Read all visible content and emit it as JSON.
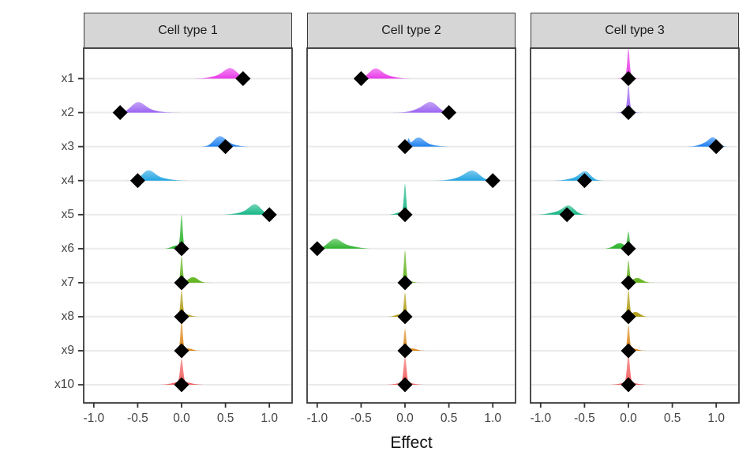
{
  "chart_data": {
    "type": "area",
    "description": "Faceted ridgeline/density plot of posterior effect distributions with black diamond point estimates, one panel per cell type",
    "facets": [
      "Cell type 1",
      "Cell type 2",
      "Cell type 3"
    ],
    "variables": [
      "x1",
      "x2",
      "x3",
      "x4",
      "x5",
      "x6",
      "x7",
      "x8",
      "x9",
      "x10"
    ],
    "xlabel": "Effect",
    "x_ticks": {
      "values": [
        -1.0,
        -0.5,
        0.0,
        0.5,
        1.0
      ],
      "labels": [
        "-1.0",
        "-0.5",
        "0.0",
        "0.5",
        "1.0"
      ]
    },
    "xlim": [
      -1.12,
      1.26
    ],
    "grid": "horizontal-only",
    "legend": "none",
    "point_shape": "diamond",
    "point_color": "#000000",
    "series_colors": {
      "x1": "#E93BE9",
      "x2": "#9C66F2",
      "x3": "#2082F0",
      "x4": "#23A5E2",
      "x5": "#17B787",
      "x6": "#2EB42E",
      "x7": "#63B41E",
      "x8": "#B09D15",
      "x9": "#DD8A1E",
      "x10": "#F15F5F"
    },
    "style": {
      "gridline": "#EBEBEB",
      "border": "#3A3A3A",
      "strip_bg": "#D6D6D6",
      "axis_text": "#444444",
      "tick_color": "#333333"
    },
    "panels": [
      {
        "facet": "Cell type 1",
        "rows": [
          {
            "var": "x1",
            "point": 0.7,
            "density": [
              {
                "mu": 0.56,
                "s": 0.075,
                "a": 12
              },
              {
                "mu": 0.43,
                "s": 0.1,
                "a": 3
              }
            ]
          },
          {
            "var": "x2",
            "point": -0.7,
            "density": [
              {
                "mu": -0.5,
                "s": 0.075,
                "a": 12
              },
              {
                "mu": -0.37,
                "s": 0.1,
                "a": 3
              }
            ]
          },
          {
            "var": "x3",
            "point": 0.5,
            "density": [
              {
                "mu": 0.43,
                "s": 0.065,
                "a": 12
              },
              {
                "mu": 0.54,
                "s": 0.08,
                "a": 3
              }
            ]
          },
          {
            "var": "x4",
            "point": -0.5,
            "density": [
              {
                "mu": -0.38,
                "s": 0.07,
                "a": 12
              },
              {
                "mu": -0.24,
                "s": 0.1,
                "a": 3
              }
            ]
          },
          {
            "var": "x5",
            "point": 1.0,
            "density": [
              {
                "mu": 0.84,
                "s": 0.065,
                "a": 12
              },
              {
                "mu": 0.72,
                "s": 0.09,
                "a": 3
              }
            ]
          },
          {
            "var": "x6",
            "point": 0.0,
            "density": [
              {
                "mu": 0.0,
                "s": 0.013,
                "a": 41
              },
              {
                "mu": -0.06,
                "s": 0.05,
                "a": 4
              }
            ]
          },
          {
            "var": "x7",
            "point": 0.0,
            "density": [
              {
                "mu": 0.0,
                "s": 0.013,
                "a": 33
              },
              {
                "mu": 0.13,
                "s": 0.055,
                "a": 7
              }
            ]
          },
          {
            "var": "x8",
            "point": 0.0,
            "density": [
              {
                "mu": 0.0,
                "s": 0.013,
                "a": 32
              },
              {
                "mu": 0.05,
                "s": 0.05,
                "a": 3
              }
            ]
          },
          {
            "var": "x9",
            "point": 0.0,
            "density": [
              {
                "mu": 0.0,
                "s": 0.013,
                "a": 37
              },
              {
                "mu": 0.07,
                "s": 0.05,
                "a": 3
              }
            ]
          },
          {
            "var": "x10",
            "point": 0.0,
            "density": [
              {
                "mu": 0.0,
                "s": 0.016,
                "a": 29
              },
              {
                "mu": 0.0,
                "s": 0.09,
                "a": 4
              }
            ]
          }
        ]
      },
      {
        "facet": "Cell type 2",
        "rows": [
          {
            "var": "x1",
            "point": -0.5,
            "density": [
              {
                "mu": -0.34,
                "s": 0.07,
                "a": 12
              },
              {
                "mu": -0.2,
                "s": 0.09,
                "a": 3
              }
            ]
          },
          {
            "var": "x2",
            "point": 0.5,
            "density": [
              {
                "mu": 0.3,
                "s": 0.075,
                "a": 12
              },
              {
                "mu": 0.17,
                "s": 0.09,
                "a": 4
              }
            ]
          },
          {
            "var": "x3",
            "point": 0.0,
            "density": [
              {
                "mu": 0.15,
                "s": 0.065,
                "a": 11
              },
              {
                "mu": 0.28,
                "s": 0.08,
                "a": 2
              },
              {
                "mu": 0.04,
                "s": 0.012,
                "a": 8
              }
            ]
          },
          {
            "var": "x4",
            "point": 1.0,
            "density": [
              {
                "mu": 0.77,
                "s": 0.08,
                "a": 12
              },
              {
                "mu": 0.62,
                "s": 0.09,
                "a": 3
              }
            ]
          },
          {
            "var": "x5",
            "point": 0.0,
            "density": [
              {
                "mu": 0.0,
                "s": 0.013,
                "a": 37
              },
              {
                "mu": -0.05,
                "s": 0.05,
                "a": 3
              }
            ]
          },
          {
            "var": "x6",
            "point": -1.0,
            "density": [
              {
                "mu": -0.8,
                "s": 0.075,
                "a": 12
              },
              {
                "mu": -0.63,
                "s": 0.09,
                "a": 3
              }
            ]
          },
          {
            "var": "x7",
            "point": 0.0,
            "density": [
              {
                "mu": 0.0,
                "s": 0.013,
                "a": 40
              },
              {
                "mu": 0.05,
                "s": 0.04,
                "a": 2
              }
            ]
          },
          {
            "var": "x8",
            "point": 0.0,
            "density": [
              {
                "mu": 0.0,
                "s": 0.013,
                "a": 29
              },
              {
                "mu": -0.06,
                "s": 0.05,
                "a": 3
              }
            ]
          },
          {
            "var": "x9",
            "point": 0.0,
            "density": [
              {
                "mu": 0.0,
                "s": 0.013,
                "a": 27
              },
              {
                "mu": 0.08,
                "s": 0.05,
                "a": 3
              }
            ]
          },
          {
            "var": "x10",
            "point": 0.0,
            "density": [
              {
                "mu": 0.0,
                "s": 0.016,
                "a": 32
              },
              {
                "mu": 0.0,
                "s": 0.08,
                "a": 3
              }
            ]
          }
        ]
      },
      {
        "facet": "Cell type 3",
        "rows": [
          {
            "var": "x1",
            "point": 0.0,
            "density": [
              {
                "mu": 0.0,
                "s": 0.013,
                "a": 34
              },
              {
                "mu": 0.0,
                "s": 0.045,
                "a": 4
              }
            ]
          },
          {
            "var": "x2",
            "point": 0.0,
            "density": [
              {
                "mu": 0.0,
                "s": 0.013,
                "a": 31
              },
              {
                "mu": 0.0,
                "s": 0.045,
                "a": 4
              }
            ]
          },
          {
            "var": "x3",
            "point": 1.0,
            "density": [
              {
                "mu": 0.97,
                "s": 0.05,
                "a": 10
              },
              {
                "mu": 0.88,
                "s": 0.07,
                "a": 4
              }
            ]
          },
          {
            "var": "x4",
            "point": -0.5,
            "density": [
              {
                "mu": -0.49,
                "s": 0.06,
                "a": 11
              },
              {
                "mu": -0.61,
                "s": 0.08,
                "a": 3
              }
            ]
          },
          {
            "var": "x5",
            "point": -0.7,
            "density": [
              {
                "mu": -0.68,
                "s": 0.065,
                "a": 11
              },
              {
                "mu": -0.82,
                "s": 0.08,
                "a": 3
              }
            ]
          },
          {
            "var": "x6",
            "point": 0.0,
            "density": [
              {
                "mu": 0.0,
                "s": 0.013,
                "a": 20
              },
              {
                "mu": -0.1,
                "s": 0.06,
                "a": 7
              }
            ]
          },
          {
            "var": "x7",
            "point": 0.0,
            "density": [
              {
                "mu": 0.0,
                "s": 0.013,
                "a": 27
              },
              {
                "mu": 0.1,
                "s": 0.055,
                "a": 6
              }
            ]
          },
          {
            "var": "x8",
            "point": 0.0,
            "density": [
              {
                "mu": 0.0,
                "s": 0.013,
                "a": 33
              },
              {
                "mu": 0.08,
                "s": 0.05,
                "a": 6
              }
            ]
          },
          {
            "var": "x9",
            "point": 0.0,
            "density": [
              {
                "mu": 0.0,
                "s": 0.013,
                "a": 31
              },
              {
                "mu": 0.05,
                "s": 0.05,
                "a": 3
              }
            ]
          },
          {
            "var": "x10",
            "point": 0.0,
            "density": [
              {
                "mu": 0.0,
                "s": 0.016,
                "a": 35
              },
              {
                "mu": 0.0,
                "s": 0.08,
                "a": 3
              }
            ]
          }
        ]
      }
    ]
  }
}
